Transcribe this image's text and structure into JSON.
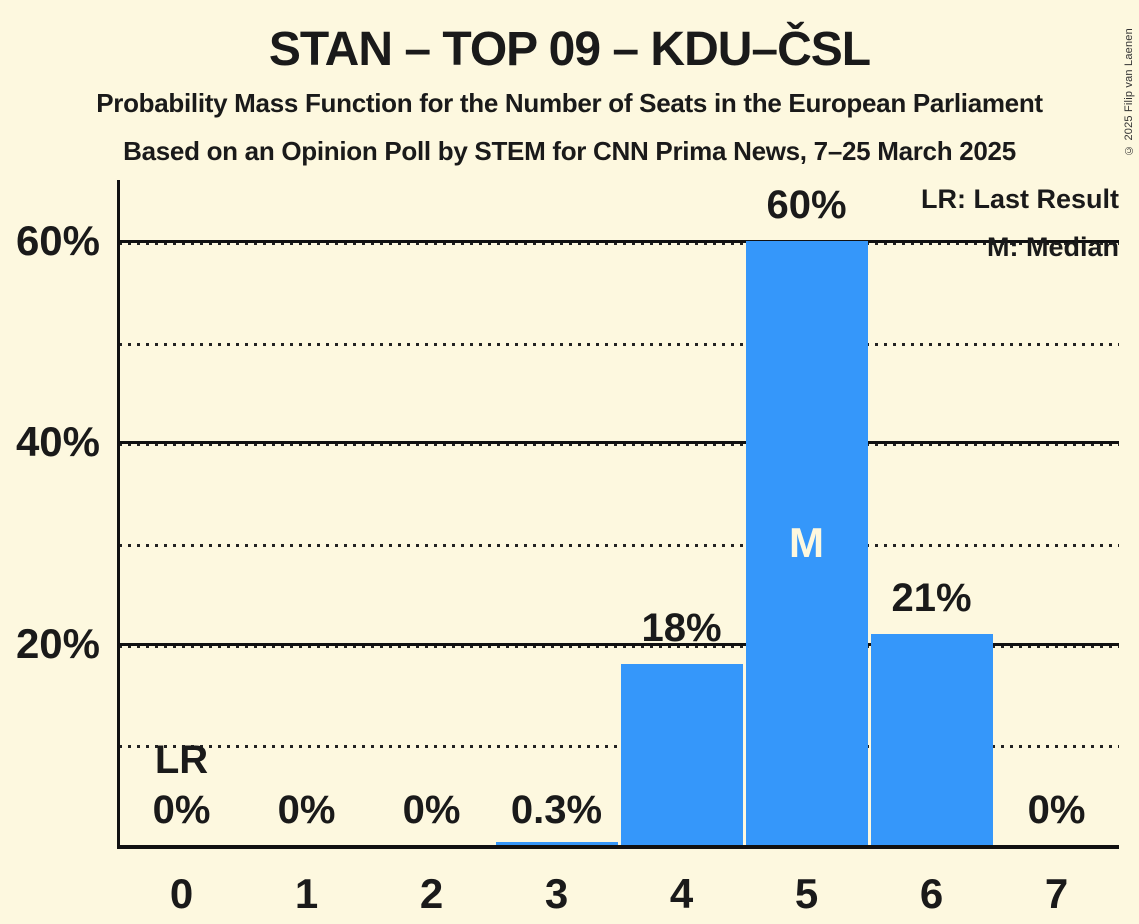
{
  "title": "STAN – TOP 09 – KDU–ČSL",
  "subtitles": [
    "Probability Mass Function for the Number of Seats in the European Parliament",
    "Based on an Opinion Poll by STEM for CNN Prima News, 7–25 March 2025"
  ],
  "legend": {
    "last_result": "LR: Last Result",
    "median": "M: Median"
  },
  "copyright": "© 2025 Filip van Laenen",
  "colors": {
    "background": "#FDF8DF",
    "bar": "#3597FA",
    "text": "#1A1A1A",
    "axis": "#111111",
    "median_text": "#FDF8DF"
  },
  "chart_data": {
    "type": "bar",
    "title": "STAN – TOP 09 – KDU–ČSL",
    "categories": [
      "0",
      "1",
      "2",
      "3",
      "4",
      "5",
      "6",
      "7"
    ],
    "values": [
      0,
      0,
      0,
      0.3,
      18,
      60,
      21,
      0
    ],
    "bar_labels": [
      "0%",
      "0%",
      "0%",
      "0.3%",
      "18%",
      "60%",
      "21%",
      "0%"
    ],
    "y_tick_labels": [
      "20%",
      "40%",
      "60%"
    ],
    "y_ticks_solid": [
      20,
      40,
      60
    ],
    "y_ticks_dotted": [
      10,
      30,
      50
    ],
    "ylim": [
      0,
      66
    ],
    "grid": "horizontal",
    "legend_position": "top-right",
    "median_category": "5",
    "median_marker": "M",
    "last_result_category": "0",
    "last_result_marker": "LR"
  }
}
